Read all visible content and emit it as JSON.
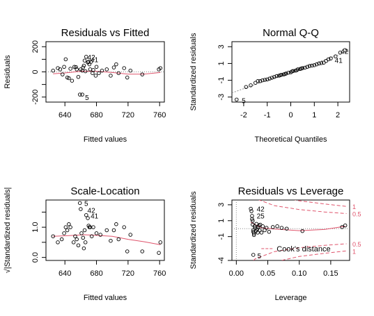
{
  "colors": {
    "axis": "#000000",
    "points": "#000000",
    "smooth": "#DF536B",
    "reference": "#888888"
  },
  "chart_data": [
    {
      "type": "scatter",
      "title": "Residuals vs Fitted",
      "xlabel": "Fitted values",
      "ylabel": "Residuals",
      "xlim": [
        616,
        766
      ],
      "ylim": [
        -240,
        240
      ],
      "xticks": [
        640,
        680,
        720,
        760
      ],
      "xtick_labels": [
        "640",
        "680",
        "720",
        "760"
      ],
      "yticks": [
        -200,
        -100,
        0,
        100,
        200
      ],
      "ytick_labels": [
        "-200",
        "",
        "0",
        "",
        "200"
      ],
      "hline": 0,
      "points": [
        [
          625,
          10
        ],
        [
          631,
          30
        ],
        [
          634,
          20
        ],
        [
          637,
          -20
        ],
        [
          639,
          40
        ],
        [
          641,
          100
        ],
        [
          643,
          -45
        ],
        [
          645,
          -50
        ],
        [
          647,
          25
        ],
        [
          649,
          -70
        ],
        [
          652,
          40
        ],
        [
          654,
          38
        ],
        [
          655,
          20
        ],
        [
          657,
          -40
        ],
        [
          659,
          -180
        ],
        [
          660,
          20
        ],
        [
          662,
          10
        ],
        [
          663,
          35
        ],
        [
          664,
          50
        ],
        [
          665,
          90
        ],
        [
          666,
          5
        ],
        [
          667,
          120
        ],
        [
          669,
          75
        ],
        [
          670,
          80
        ],
        [
          671,
          60
        ],
        [
          672,
          20
        ],
        [
          673,
          80
        ],
        [
          675,
          -10
        ],
        [
          676,
          15
        ],
        [
          679,
          -30
        ],
        [
          680,
          40
        ],
        [
          683,
          -10
        ],
        [
          687,
          10
        ],
        [
          693,
          20
        ],
        [
          698,
          -30
        ],
        [
          702,
          35
        ],
        [
          705,
          60
        ],
        [
          708,
          -10
        ],
        [
          715,
          30
        ],
        [
          719,
          -45
        ],
        [
          723,
          10
        ],
        [
          738,
          -20
        ],
        [
          759,
          20
        ],
        [
          761,
          30
        ],
        [
          662,
          -180
        ]
      ],
      "smooth": [
        [
          625,
          -15
        ],
        [
          640,
          -8
        ],
        [
          660,
          5
        ],
        [
          680,
          5
        ],
        [
          700,
          -5
        ],
        [
          720,
          -18
        ],
        [
          740,
          -18
        ],
        [
          761,
          -5
        ]
      ],
      "labels": [
        {
          "text": "42",
          "x": 665,
          "y": 120
        },
        {
          "text": "41",
          "x": 669,
          "y": 100
        },
        {
          "text": "5",
          "x": 662,
          "y": -200
        }
      ]
    },
    {
      "type": "scatter",
      "title": "Normal Q-Q",
      "xlabel": "Theoretical Quantiles",
      "ylabel": "Standardized residuals",
      "xlim": [
        -2.5,
        2.5
      ],
      "ylim": [
        -3.6,
        3.6
      ],
      "xticks": [
        -2,
        -1,
        0,
        1,
        2
      ],
      "xtick_labels": [
        "-2",
        "-1",
        "0",
        "1",
        "2"
      ],
      "yticks": [
        -3,
        -1,
        1,
        3
      ],
      "ytick_labels": [
        "-3",
        "-1",
        "1",
        "3"
      ],
      "refline": [
        [
          -2.5,
          -2.5
        ],
        [
          2.5,
          2.5
        ]
      ],
      "points": [
        [
          -2.3,
          -3.3
        ],
        [
          -1.9,
          -1.8
        ],
        [
          -1.7,
          -1.6
        ],
        [
          -1.5,
          -1.3
        ],
        [
          -1.4,
          -1.1
        ],
        [
          -1.3,
          -1.1
        ],
        [
          -1.2,
          -1.0
        ],
        [
          -1.1,
          -0.95
        ],
        [
          -1.0,
          -0.9
        ],
        [
          -0.9,
          -0.8
        ],
        [
          -0.8,
          -0.7
        ],
        [
          -0.7,
          -0.6
        ],
        [
          -0.6,
          -0.5
        ],
        [
          -0.5,
          -0.45
        ],
        [
          -0.45,
          -0.4
        ],
        [
          -0.4,
          -0.35
        ],
        [
          -0.3,
          -0.3
        ],
        [
          -0.25,
          -0.25
        ],
        [
          -0.2,
          -0.2
        ],
        [
          -0.1,
          -0.1
        ],
        [
          0.0,
          -0.05
        ],
        [
          0.05,
          0.05
        ],
        [
          0.1,
          0.1
        ],
        [
          0.2,
          0.15
        ],
        [
          0.25,
          0.2
        ],
        [
          0.3,
          0.3
        ],
        [
          0.4,
          0.35
        ],
        [
          0.45,
          0.4
        ],
        [
          0.5,
          0.45
        ],
        [
          0.6,
          0.5
        ],
        [
          0.7,
          0.6
        ],
        [
          0.8,
          0.7
        ],
        [
          0.9,
          0.75
        ],
        [
          1.0,
          0.8
        ],
        [
          1.1,
          0.9
        ],
        [
          1.2,
          1.0
        ],
        [
          1.3,
          1.05
        ],
        [
          1.4,
          1.1
        ],
        [
          1.5,
          1.3
        ],
        [
          1.6,
          1.5
        ],
        [
          1.7,
          1.6
        ],
        [
          1.9,
          1.85
        ],
        [
          2.1,
          2.3
        ],
        [
          2.3,
          2.6
        ]
      ],
      "labels": [
        {
          "text": "41",
          "x": 1.75,
          "y": 1.4
        },
        {
          "text": "42",
          "x": 2.0,
          "y": 2.5
        },
        {
          "text": "5",
          "x": -2.2,
          "y": -3.4
        }
      ]
    },
    {
      "type": "scatter",
      "title": "Scale-Location",
      "xlabel": "Fitted values",
      "ylabel": "√|Standardized residuals|",
      "xlim": [
        616,
        766
      ],
      "ylim": [
        -0.1,
        1.9
      ],
      "xticks": [
        640,
        680,
        720,
        760
      ],
      "xtick_labels": [
        "640",
        "680",
        "720",
        "760"
      ],
      "yticks": [
        0.0,
        0.5,
        1.0,
        1.5
      ],
      "ytick_labels": [
        "0.0",
        "",
        "1.0",
        ""
      ],
      "points": [
        [
          625,
          0.7
        ],
        [
          631,
          0.5
        ],
        [
          636,
          0.6
        ],
        [
          639,
          0.8
        ],
        [
          641,
          1.0
        ],
        [
          643,
          0.9
        ],
        [
          645,
          1.1
        ],
        [
          647,
          1.0
        ],
        [
          651,
          0.5
        ],
        [
          653,
          0.7
        ],
        [
          655,
          0.6
        ],
        [
          657,
          0.4
        ],
        [
          659,
          1.8
        ],
        [
          660,
          1.6
        ],
        [
          661,
          0.8
        ],
        [
          663,
          0.65
        ],
        [
          664,
          0.3
        ],
        [
          665,
          0.9
        ],
        [
          666,
          0.5
        ],
        [
          667,
          1.4
        ],
        [
          669,
          1.3
        ],
        [
          670,
          1.05
        ],
        [
          671,
          1.0
        ],
        [
          672,
          1.0
        ],
        [
          674,
          0.7
        ],
        [
          676,
          1.0
        ],
        [
          680,
          0.8
        ],
        [
          685,
          0.75
        ],
        [
          693,
          0.9
        ],
        [
          698,
          0.55
        ],
        [
          702,
          0.9
        ],
        [
          705,
          1.1
        ],
        [
          708,
          0.6
        ],
        [
          715,
          1.0
        ],
        [
          719,
          0.2
        ],
        [
          723,
          0.75
        ],
        [
          738,
          0.2
        ],
        [
          759,
          0.15
        ],
        [
          761,
          0.5
        ]
      ],
      "smooth": [
        [
          625,
          0.7
        ],
        [
          645,
          0.72
        ],
        [
          665,
          0.75
        ],
        [
          680,
          0.73
        ],
        [
          700,
          0.7
        ],
        [
          720,
          0.6
        ],
        [
          740,
          0.52
        ],
        [
          761,
          0.42
        ]
      ],
      "labels": [
        {
          "text": "5",
          "x": 661,
          "y": 1.8
        },
        {
          "text": "42",
          "x": 665,
          "y": 1.57
        },
        {
          "text": "41",
          "x": 669,
          "y": 1.38
        }
      ]
    },
    {
      "type": "scatter",
      "title": "Residuals vs Leverage",
      "xlabel": "Leverage",
      "ylabel": "Standardized residuals",
      "xlim": [
        -0.007,
        0.18
      ],
      "ylim": [
        -4.0,
        3.6
      ],
      "xticks": [
        0.0,
        0.05,
        0.1,
        0.15
      ],
      "xtick_labels": [
        "0.00",
        "0.05",
        "0.10",
        "0.15"
      ],
      "yticks": [
        -4,
        -1,
        1,
        3
      ],
      "ytick_labels": [
        "-4",
        "-1",
        "1",
        "3"
      ],
      "hline": 0,
      "vline": 0,
      "points": [
        [
          0.023,
          2.5
        ],
        [
          0.024,
          2.2
        ],
        [
          0.025,
          1.6
        ],
        [
          0.025,
          1.2
        ],
        [
          0.026,
          1.0
        ],
        [
          0.026,
          0.5
        ],
        [
          0.027,
          -0.2
        ],
        [
          0.027,
          -0.4
        ],
        [
          0.028,
          -0.6
        ],
        [
          0.028,
          -0.8
        ],
        [
          0.029,
          0.3
        ],
        [
          0.03,
          0.1
        ],
        [
          0.031,
          -0.3
        ],
        [
          0.032,
          0.6
        ],
        [
          0.033,
          -0.1
        ],
        [
          0.034,
          -0.5
        ],
        [
          0.035,
          0.2
        ],
        [
          0.036,
          0.4
        ],
        [
          0.037,
          -0.2
        ],
        [
          0.038,
          0.5
        ],
        [
          0.04,
          -0.5
        ],
        [
          0.042,
          0.3
        ],
        [
          0.045,
          -0.2
        ],
        [
          0.048,
          0.1
        ],
        [
          0.052,
          -0.4
        ],
        [
          0.058,
          0.2
        ],
        [
          0.065,
          0.3
        ],
        [
          0.072,
          0.1
        ],
        [
          0.08,
          0.0
        ],
        [
          0.105,
          -0.3
        ],
        [
          0.168,
          0.2
        ],
        [
          0.173,
          0.4
        ],
        [
          0.027,
          -3.3
        ]
      ],
      "smooth": [
        [
          0.023,
          0.8
        ],
        [
          0.04,
          0.1
        ],
        [
          0.06,
          -0.05
        ],
        [
          0.1,
          -0.25
        ],
        [
          0.14,
          -0.1
        ],
        [
          0.173,
          0.3
        ]
      ],
      "cook_curves": [
        {
          "level": 0.5,
          "upper": [
            [
              0.015,
              5.0
            ],
            [
              0.03,
              3.8
            ],
            [
              0.06,
              2.9
            ],
            [
              0.1,
              2.4
            ],
            [
              0.14,
              2.1
            ],
            [
              0.175,
              1.9
            ]
          ],
          "lower": [
            [
              0.015,
              -5.0
            ],
            [
              0.03,
              -3.8
            ],
            [
              0.06,
              -2.9
            ],
            [
              0.1,
              -2.4
            ],
            [
              0.14,
              -2.1
            ],
            [
              0.175,
              -1.9
            ]
          ]
        },
        {
          "level": 1,
          "upper": [
            [
              0.03,
              5.0
            ],
            [
              0.06,
              4.2
            ],
            [
              0.1,
              3.5
            ],
            [
              0.14,
              3.1
            ],
            [
              0.175,
              2.8
            ]
          ],
          "lower": [
            [
              0.03,
              -5.0
            ],
            [
              0.06,
              -4.2
            ],
            [
              0.1,
              -3.5
            ],
            [
              0.14,
              -3.1
            ],
            [
              0.175,
              -2.8
            ]
          ]
        }
      ],
      "cook_labels": [
        "0.5",
        "1"
      ],
      "legend": {
        "text": "Cook's distance",
        "position": "bottom"
      },
      "labels": [
        {
          "text": "42",
          "x": 0.028,
          "y": 2.5
        },
        {
          "text": "25",
          "x": 0.028,
          "y": 1.65
        },
        {
          "text": "5",
          "x": 0.029,
          "y": -3.4
        }
      ]
    }
  ]
}
